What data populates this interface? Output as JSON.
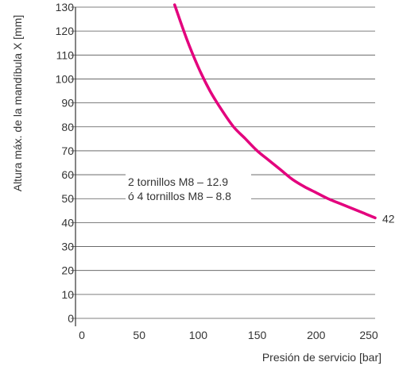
{
  "chart_data": {
    "type": "line",
    "title": "",
    "xlabel": "Presión de servicio [bar]",
    "ylabel": "Altura máx. de la mandíbula X [mm]",
    "xlim": [
      -2,
      250
    ],
    "ylim": [
      0,
      130
    ],
    "xticks": [
      "0",
      "50",
      "100",
      "150",
      "200",
      "250"
    ],
    "xtick_values": [
      0,
      50,
      100,
      150,
      200,
      250
    ],
    "yticks": [
      "0",
      "10",
      "20",
      "30",
      "40",
      "50",
      "60",
      "70",
      "80",
      "90",
      "100",
      "110",
      "120",
      "130"
    ],
    "ytick_values": [
      0,
      10,
      20,
      30,
      40,
      50,
      60,
      70,
      80,
      90,
      100,
      110,
      120,
      130
    ],
    "grid": "horizontal",
    "series": [
      {
        "color": "#e3007d",
        "x": [
          80,
          90,
          100,
          110,
          120,
          130,
          140,
          150,
          160,
          170,
          180,
          190,
          200,
          210,
          220,
          230,
          240,
          250
        ],
        "y": [
          131,
          117,
          105,
          95,
          87,
          80,
          75,
          70,
          66,
          62,
          58,
          55,
          52.5,
          50,
          48,
          46,
          44,
          42
        ]
      }
    ],
    "annotations": [
      {
        "lines": [
          "2 tornillos M8 – 12.9",
          "ó 4 tornillos M8 – 8.8"
        ]
      },
      {
        "text": "42"
      }
    ]
  }
}
